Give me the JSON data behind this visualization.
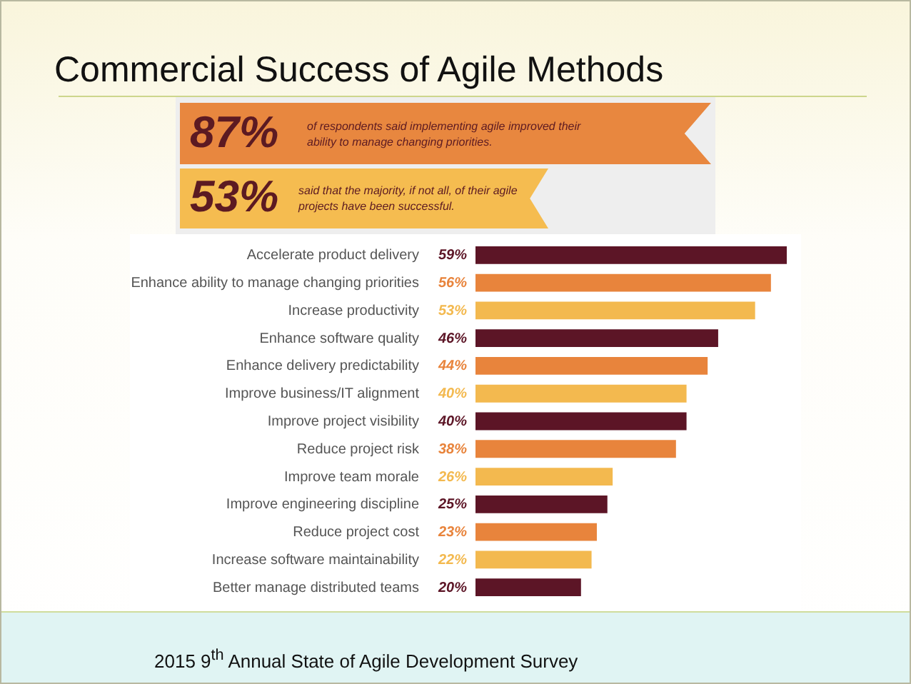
{
  "chart_data": {
    "type": "bar",
    "orientation": "horizontal",
    "title": "Commercial Success of Agile Methods",
    "categories": [
      "Accelerate product delivery",
      "Enhance ability to manage changing priorities",
      "Increase productivity",
      "Enhance software quality",
      "Enhance delivery predictability",
      "Improve business/IT alignment",
      "Improve project visibility",
      "Reduce project risk",
      "Improve team morale",
      "Improve engineering discipline",
      "Reduce project cost",
      "Increase software maintainability",
      "Better manage distributed teams"
    ],
    "values": [
      59,
      56,
      53,
      46,
      44,
      40,
      40,
      38,
      26,
      25,
      23,
      22,
      20
    ],
    "value_labels": [
      "59%",
      "56%",
      "53%",
      "46%",
      "44%",
      "40%",
      "40%",
      "38%",
      "26%",
      "25%",
      "23%",
      "22%",
      "20%"
    ],
    "colors": [
      "#5c1526",
      "#e8843c",
      "#f3b94f",
      "#5c1526",
      "#e8843c",
      "#f3b94f",
      "#5c1526",
      "#e8843c",
      "#f3b94f",
      "#5c1526",
      "#e8843c",
      "#f3b94f",
      "#5c1526"
    ],
    "tick_labels": "y",
    "annotations": [
      "87%",
      "of respondents said implementing agile improved their ability to manage changing priorities.",
      "53%",
      "said that the majority, if not all, of their agile projects have been successful.",
      "2015 9$^{th}$ Annual State of Agile Development Survey"
    ]
  }
}
